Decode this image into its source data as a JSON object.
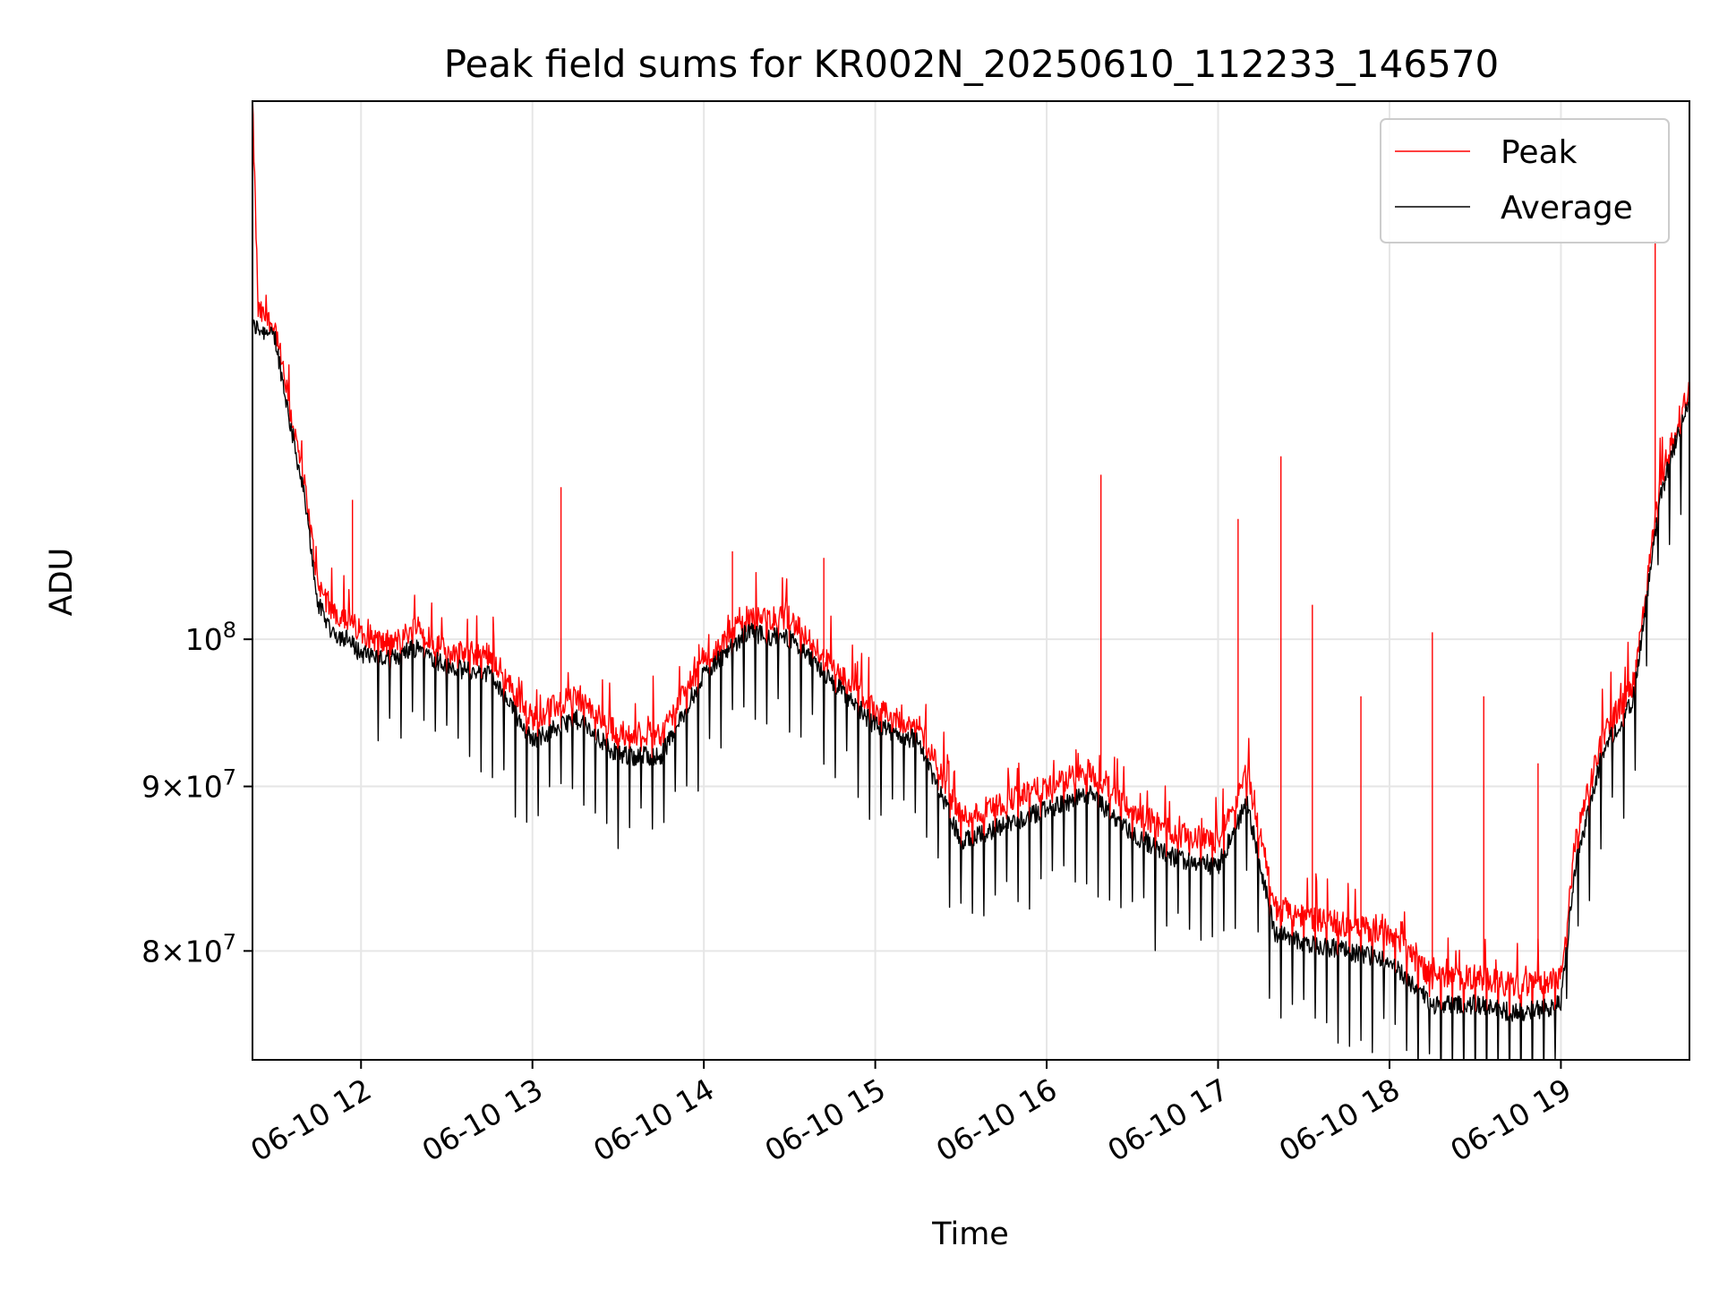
{
  "chart_data": {
    "type": "line",
    "title": "Peak field sums for KR002N_20250610_112233_146570",
    "xlabel": "Time",
    "ylabel": "ADU",
    "y_scale": "log",
    "ylim": [
      74000000,
      147000000
    ],
    "xlim": [
      "2025-06-10 11:22",
      "2025-06-10 19:45"
    ],
    "grid": true,
    "legend_position": "upper right",
    "x_ticks": [
      {
        "x": "2025-06-10 12:00",
        "label": "06-10 12"
      },
      {
        "x": "2025-06-10 13:00",
        "label": "06-10 13"
      },
      {
        "x": "2025-06-10 14:00",
        "label": "06-10 14"
      },
      {
        "x": "2025-06-10 15:00",
        "label": "06-10 15"
      },
      {
        "x": "2025-06-10 16:00",
        "label": "06-10 16"
      },
      {
        "x": "2025-06-10 17:00",
        "label": "06-10 17"
      },
      {
        "x": "2025-06-10 18:00",
        "label": "06-10 18"
      },
      {
        "x": "2025-06-10 19:00",
        "label": "06-10 19"
      }
    ],
    "y_ticks": [
      {
        "value": 100000000,
        "base": "10",
        "exp": "8"
      },
      {
        "value": 90000000,
        "mant": "9",
        "base": "10",
        "exp": "7"
      },
      {
        "value": 80000000,
        "mant": "8",
        "base": "10",
        "exp": "7"
      }
    ],
    "series": [
      {
        "name": "Peak",
        "color": "#ff0000",
        "x": [
          "2025-06-10 11:22",
          "2025-06-10 11:24",
          "2025-06-10 11:30",
          "2025-06-10 11:35",
          "2025-06-10 11:40",
          "2025-06-10 11:45",
          "2025-06-10 11:50",
          "2025-06-10 11:55",
          "2025-06-10 12:00",
          "2025-06-10 12:10",
          "2025-06-10 12:20",
          "2025-06-10 12:30",
          "2025-06-10 12:45",
          "2025-06-10 13:00",
          "2025-06-10 13:15",
          "2025-06-10 13:30",
          "2025-06-10 13:45",
          "2025-06-10 14:00",
          "2025-06-10 14:15",
          "2025-06-10 14:30",
          "2025-06-10 14:45",
          "2025-06-10 15:00",
          "2025-06-10 15:15",
          "2025-06-10 15:30",
          "2025-06-10 15:45",
          "2025-06-10 16:00",
          "2025-06-10 16:15",
          "2025-06-10 16:30",
          "2025-06-10 16:45",
          "2025-06-10 17:00",
          "2025-06-10 17:10",
          "2025-06-10 17:20",
          "2025-06-10 17:30",
          "2025-06-10 17:45",
          "2025-06-10 18:00",
          "2025-06-10 18:15",
          "2025-06-10 18:30",
          "2025-06-10 18:45",
          "2025-06-10 19:00",
          "2025-06-10 19:05",
          "2025-06-10 19:15",
          "2025-06-10 19:25",
          "2025-06-10 19:35",
          "2025-06-10 19:45"
        ],
        "y": [
          147000000,
          126500000,
          125000000,
          118000000,
          112000000,
          104000000,
          102000000,
          101500000,
          100500000,
          99500000,
          101000000,
          99000000,
          99000000,
          94500000,
          96000000,
          93500000,
          93500000,
          98500000,
          101500000,
          101500000,
          98000000,
          95000000,
          94000000,
          88000000,
          89000000,
          90000000,
          91000000,
          88500000,
          87000000,
          86500000,
          91000000,
          82500000,
          82000000,
          81500000,
          81000000,
          78500000,
          78500000,
          78000000,
          78500000,
          86500000,
          93500000,
          96500000,
          112000000,
          120000000
        ],
        "spikes": [
          {
            "x": "2025-06-10 11:57",
            "y": 110500000
          },
          {
            "x": "2025-06-10 13:10",
            "y": 111500000
          },
          {
            "x": "2025-06-10 14:10",
            "y": 106500000
          },
          {
            "x": "2025-06-10 14:42",
            "y": 106000000
          },
          {
            "x": "2025-06-10 16:19",
            "y": 112500000
          },
          {
            "x": "2025-06-10 17:07",
            "y": 109000000
          },
          {
            "x": "2025-06-10 17:22",
            "y": 114000000
          },
          {
            "x": "2025-06-10 17:33",
            "y": 102500000
          },
          {
            "x": "2025-06-10 17:50",
            "y": 96000000
          },
          {
            "x": "2025-06-10 18:15",
            "y": 100500000
          },
          {
            "x": "2025-06-10 18:33",
            "y": 96000000
          },
          {
            "x": "2025-06-10 18:52",
            "y": 91500000
          },
          {
            "x": "2025-06-10 19:33",
            "y": 133000000
          }
        ]
      },
      {
        "name": "Average",
        "color": "#000000",
        "x": [
          "2025-06-10 11:22",
          "2025-06-10 11:24",
          "2025-06-10 11:30",
          "2025-06-10 11:35",
          "2025-06-10 11:40",
          "2025-06-10 11:45",
          "2025-06-10 11:50",
          "2025-06-10 11:55",
          "2025-06-10 12:00",
          "2025-06-10 12:10",
          "2025-06-10 12:20",
          "2025-06-10 12:30",
          "2025-06-10 12:45",
          "2025-06-10 13:00",
          "2025-06-10 13:15",
          "2025-06-10 13:30",
          "2025-06-10 13:45",
          "2025-06-10 14:00",
          "2025-06-10 14:15",
          "2025-06-10 14:30",
          "2025-06-10 14:45",
          "2025-06-10 15:00",
          "2025-06-10 15:15",
          "2025-06-10 15:30",
          "2025-06-10 15:45",
          "2025-06-10 16:00",
          "2025-06-10 16:15",
          "2025-06-10 16:30",
          "2025-06-10 16:45",
          "2025-06-10 17:00",
          "2025-06-10 17:10",
          "2025-06-10 17:20",
          "2025-06-10 17:30",
          "2025-06-10 17:45",
          "2025-06-10 18:00",
          "2025-06-10 18:15",
          "2025-06-10 18:30",
          "2025-06-10 18:45",
          "2025-06-10 19:00",
          "2025-06-10 19:05",
          "2025-06-10 19:15",
          "2025-06-10 19:25",
          "2025-06-10 19:35",
          "2025-06-10 19:45"
        ],
        "y": [
          125000000,
          125000000,
          124000000,
          117000000,
          111000000,
          102500000,
          100500000,
          100000000,
          99000000,
          98500000,
          99500000,
          98000000,
          97500000,
          93000000,
          94500000,
          92000000,
          92000000,
          97500000,
          100500000,
          100000000,
          97000000,
          94000000,
          93000000,
          86500000,
          87500000,
          88500000,
          89500000,
          87000000,
          85500000,
          85000000,
          89000000,
          81000000,
          80500000,
          80000000,
          79500000,
          77000000,
          77000000,
          76500000,
          77000000,
          85000000,
          92500000,
          95500000,
          111000000,
          119000000
        ]
      }
    ]
  }
}
